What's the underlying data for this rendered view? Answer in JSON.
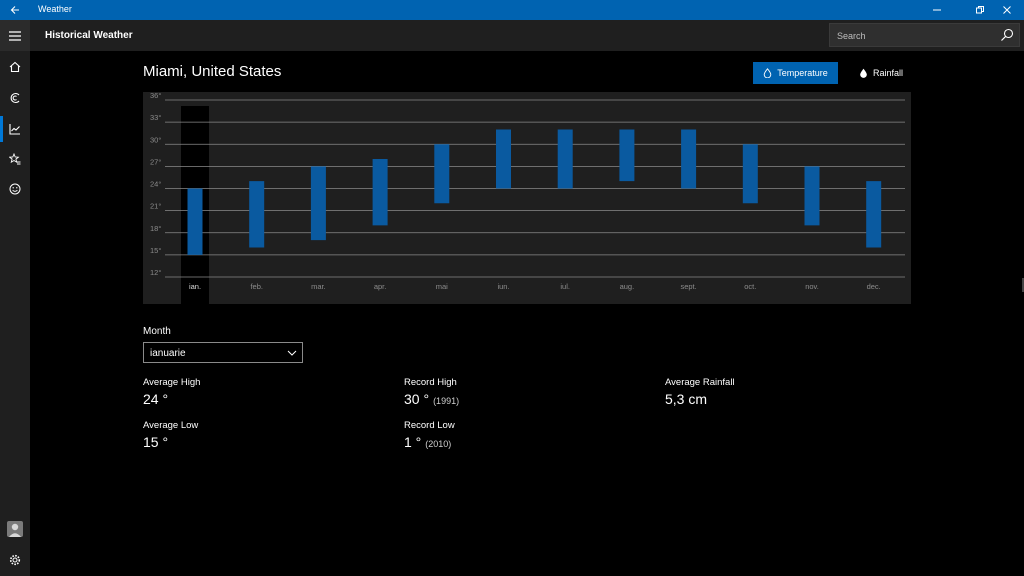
{
  "window": {
    "title": "Weather"
  },
  "header": {
    "title": "Historical Weather",
    "search_placeholder": "Search"
  },
  "nav": {
    "icons": [
      "hamburger-icon",
      "home-icon",
      "forecast-icon",
      "historical-chart-icon",
      "favorites-icon",
      "smiley-icon",
      "avatar",
      "settings-icon"
    ]
  },
  "main": {
    "location": "Miami, United States",
    "toggle": {
      "temperature": "Temperature",
      "rainfall": "Rainfall",
      "selected": "Temperature"
    },
    "month_label": "Month",
    "month_value": "ianuarie",
    "stats": {
      "avg_high_label": "Average High",
      "avg_high_value": "24 °",
      "avg_low_label": "Average Low",
      "avg_low_value": "15 °",
      "record_high_label": "Record High",
      "record_high_value": "30 °",
      "record_high_year": "(1991)",
      "record_low_label": "Record Low",
      "record_low_value": "1 °",
      "record_low_year": "(2010)",
      "avg_rain_label": "Average Rainfall",
      "avg_rain_value": "5,3 cm"
    }
  },
  "colors": {
    "accent": "#0063b1",
    "bar": "#0a5aa0",
    "selected_column": "#000000"
  },
  "chart_data": {
    "type": "bar",
    "categories": [
      "ian.",
      "feb.",
      "mar.",
      "apr.",
      "mai",
      "iun.",
      "iul.",
      "aug.",
      "sept.",
      "oct.",
      "nov.",
      "dec."
    ],
    "series": [
      {
        "low": [
          15,
          16,
          17,
          19,
          22,
          24,
          24,
          25,
          24,
          22,
          19,
          16
        ],
        "high": [
          24,
          25,
          27,
          28,
          30,
          32,
          32,
          32,
          32,
          30,
          27,
          25
        ]
      }
    ],
    "y_ticks": [
      "12°",
      "15°",
      "18°",
      "21°",
      "24°",
      "27°",
      "30°",
      "33°",
      "36°"
    ],
    "ylim": [
      12,
      36
    ],
    "selected_category": "ian.",
    "grid": true
  }
}
